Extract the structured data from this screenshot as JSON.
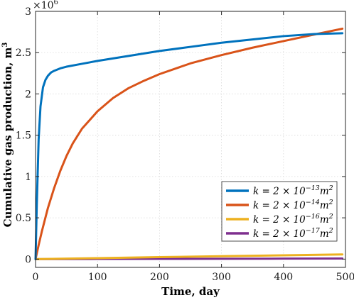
{
  "chart_data": {
    "type": "line",
    "xlabel": "Time, day",
    "ylabel": "Cumulative gas production, m",
    "ylabel_sup": "3",
    "y_multiplier_base": "×10",
    "y_multiplier_exp": "6",
    "xlim": [
      0,
      500
    ],
    "ylim": [
      -0.1,
      3.0
    ],
    "x_ticks": [
      0,
      100,
      200,
      300,
      400,
      500
    ],
    "x_tick_labels": [
      "0",
      "100",
      "200",
      "300",
      "400",
      "500"
    ],
    "y_ticks": [
      0,
      0.5,
      1,
      1.5,
      2,
      2.5,
      3
    ],
    "y_tick_labels": [
      "0",
      "0.5",
      "1",
      "1.5",
      "2",
      "2.5",
      "3"
    ],
    "grid": true,
    "legend_position": "bottom-right",
    "series": [
      {
        "name": "k = 2 × 10⁻¹³m²",
        "legend": {
          "base": "k = 2 × 10",
          "exp": "−13",
          "unit": "m",
          "unit_exp": "2"
        },
        "color": "#0072BD",
        "x": [
          0,
          2,
          5,
          8,
          12,
          16,
          20,
          25,
          30,
          40,
          50,
          75,
          100,
          150,
          200,
          250,
          300,
          350,
          400,
          450,
          495
        ],
        "y": [
          0,
          0.65,
          1.45,
          1.85,
          2.08,
          2.17,
          2.22,
          2.26,
          2.28,
          2.31,
          2.33,
          2.365,
          2.4,
          2.46,
          2.52,
          2.57,
          2.62,
          2.66,
          2.7,
          2.725,
          2.735
        ]
      },
      {
        "name": "k = 2 × 10⁻¹⁴m²",
        "legend": {
          "base": "k = 2 × 10",
          "exp": "−14",
          "unit": "m",
          "unit_exp": "2"
        },
        "color": "#D95319",
        "x": [
          0,
          5,
          10,
          20,
          30,
          40,
          50,
          60,
          75,
          100,
          125,
          150,
          175,
          200,
          250,
          300,
          350,
          400,
          450,
          495
        ],
        "y": [
          0,
          0.17,
          0.33,
          0.62,
          0.86,
          1.07,
          1.25,
          1.4,
          1.58,
          1.79,
          1.95,
          2.07,
          2.16,
          2.24,
          2.37,
          2.47,
          2.56,
          2.64,
          2.72,
          2.79
        ]
      },
      {
        "name": "k = 2 × 10⁻¹⁶m²",
        "legend": {
          "base": "k = 2 × 10",
          "exp": "−16",
          "unit": "m",
          "unit_exp": "2"
        },
        "color": "#EDB120",
        "x": [
          0,
          100,
          200,
          300,
          400,
          495
        ],
        "y": [
          0,
          0.012,
          0.024,
          0.035,
          0.046,
          0.057
        ]
      },
      {
        "name": "k = 2 × 10⁻¹⁷m²",
        "legend": {
          "base": "k = 2 × 10",
          "exp": "−17",
          "unit": "m",
          "unit_exp": "2"
        },
        "color": "#7E2F8E",
        "x": [
          0,
          100,
          200,
          300,
          400,
          495
        ],
        "y": [
          0,
          0.0015,
          0.003,
          0.0045,
          0.006,
          0.0075
        ]
      }
    ]
  }
}
